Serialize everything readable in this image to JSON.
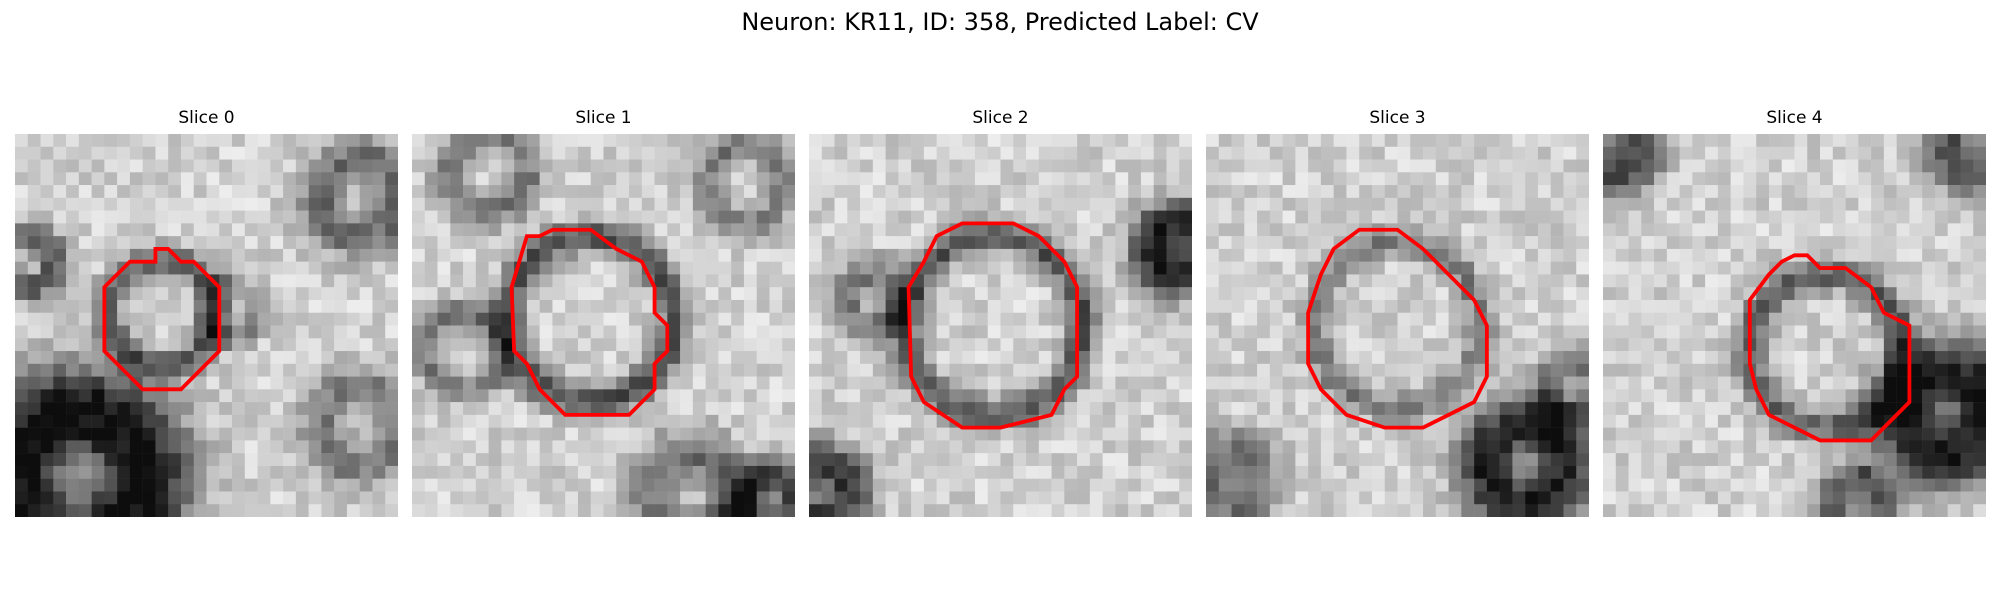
{
  "figure": {
    "title": "Neuron: KR11, ID: 358, Predicted Label: CV"
  },
  "panels": [
    {
      "title": "Slice 0"
    },
    {
      "title": "Slice 1"
    },
    {
      "title": "Slice 2"
    },
    {
      "title": "Slice 3"
    },
    {
      "title": "Slice 4"
    }
  ],
  "contour_color": "#ff0000"
}
